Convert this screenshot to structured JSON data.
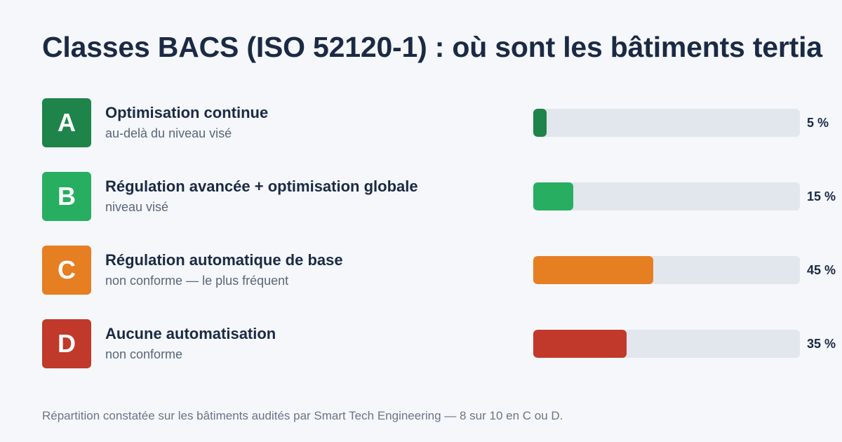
{
  "title": "Classes BACS (ISO 52120-1) : où sont les bâtiments tertia",
  "chart_data": {
    "type": "bar",
    "orientation": "horizontal",
    "categories": [
      "A",
      "B",
      "C",
      "D"
    ],
    "labels": [
      "Optimisation continue",
      "Régulation avancée + optimisation globale",
      "Régulation automatique de base",
      "Aucune automatisation"
    ],
    "sublabels": [
      "au-delà du niveau visé",
      "niveau visé",
      "non conforme — le plus fréquent",
      "non conforme"
    ],
    "values": [
      5,
      15,
      45,
      35
    ],
    "value_labels": [
      "5 %",
      "15 %",
      "45 %",
      "35 %"
    ],
    "colors": [
      "#1e8449",
      "#27ae60",
      "#e67e22",
      "#c0392b"
    ],
    "xlim": [
      0,
      100
    ],
    "grid": false
  },
  "footnote": "Répartition constatée sur les bâtiments audités par Smart Tech Engineering — 8 sur 10 en C ou D."
}
